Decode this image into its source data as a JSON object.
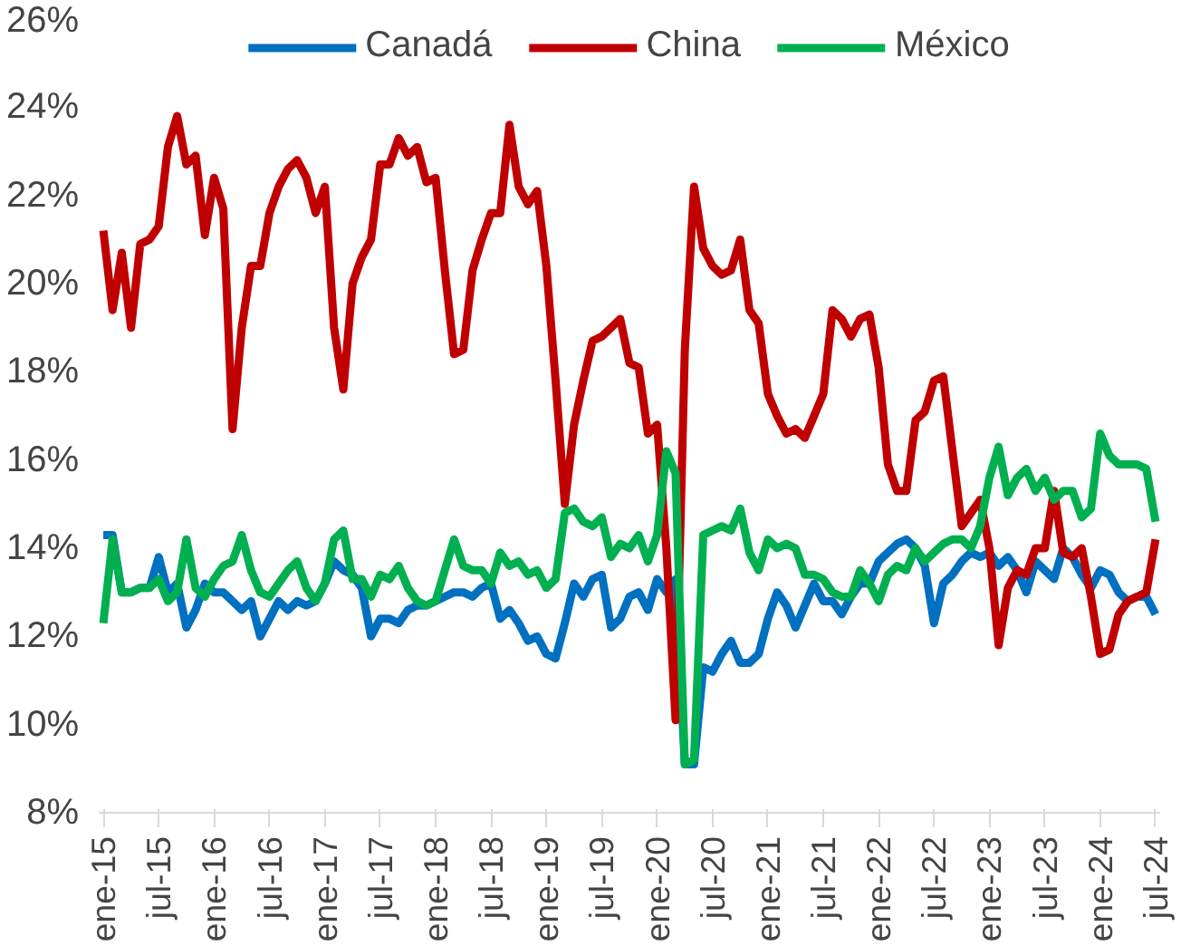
{
  "chart_data": {
    "type": "line",
    "categories": [
      "ene-15",
      null,
      null,
      null,
      null,
      null,
      "jul-15",
      null,
      null,
      null,
      null,
      null,
      "ene-16",
      null,
      null,
      null,
      null,
      null,
      "jul-16",
      null,
      null,
      null,
      null,
      null,
      "ene-17",
      null,
      null,
      null,
      null,
      null,
      "jul-17",
      null,
      null,
      null,
      null,
      null,
      "ene-18",
      null,
      null,
      null,
      null,
      null,
      "jul-18",
      null,
      null,
      null,
      null,
      null,
      "ene-19",
      null,
      null,
      null,
      null,
      null,
      "jul-19",
      null,
      null,
      null,
      null,
      null,
      "ene-20",
      null,
      null,
      null,
      null,
      null,
      "jul-20",
      null,
      null,
      null,
      null,
      null,
      "ene-21",
      null,
      null,
      null,
      null,
      null,
      "jul-21",
      null,
      null,
      null,
      null,
      null,
      "ene-22",
      null,
      null,
      null,
      null,
      null,
      "jul-22",
      null,
      null,
      null,
      null,
      null,
      "ene-23",
      null,
      null,
      null,
      null,
      null,
      "jul-23",
      null,
      null,
      null,
      null,
      null,
      "ene-24",
      null,
      null,
      null,
      null,
      null,
      "jul-24"
    ],
    "series": [
      {
        "name": "Canadá",
        "color": "#0070c0",
        "values": [
          14.3,
          14.3,
          13.0,
          13.0,
          13.1,
          13.1,
          13.8,
          13.0,
          13.2,
          12.2,
          12.6,
          13.2,
          13.0,
          13.0,
          12.8,
          12.6,
          12.8,
          12.0,
          12.4,
          12.8,
          12.6,
          12.8,
          12.7,
          12.8,
          13.2,
          13.7,
          13.5,
          13.4,
          13.1,
          12.0,
          12.4,
          12.4,
          12.3,
          12.6,
          12.7,
          12.7,
          12.8,
          12.9,
          13.0,
          13.0,
          12.9,
          13.1,
          13.2,
          12.4,
          12.6,
          12.3,
          11.9,
          12.0,
          11.6,
          11.5,
          12.3,
          13.2,
          12.9,
          13.3,
          13.4,
          12.2,
          12.4,
          12.9,
          13.0,
          12.6,
          13.3,
          13.0,
          13.3,
          9.1,
          9.1,
          11.3,
          11.2,
          11.6,
          11.9,
          11.4,
          11.4,
          11.6,
          12.4,
          13.0,
          12.7,
          12.2,
          12.7,
          13.2,
          12.8,
          12.8,
          12.5,
          12.9,
          13.2,
          13.2,
          13.7,
          13.9,
          14.1,
          14.2,
          14.0,
          13.6,
          12.3,
          13.2,
          13.4,
          13.7,
          13.9,
          13.8,
          13.9,
          13.6,
          13.8,
          13.5,
          13.0,
          13.7,
          13.5,
          13.3,
          14.0,
          13.8,
          13.4,
          13.1,
          13.5,
          13.4,
          13.0,
          12.8,
          12.9,
          12.9,
          12.5
        ]
      },
      {
        "name": "China",
        "color": "#c00000",
        "values": [
          21.2,
          19.4,
          20.7,
          19.0,
          20.9,
          21.0,
          21.3,
          23.1,
          23.8,
          22.7,
          22.9,
          21.1,
          22.4,
          21.7,
          16.7,
          19.0,
          20.4,
          20.4,
          21.6,
          22.2,
          22.6,
          22.8,
          22.4,
          21.6,
          22.2,
          19.0,
          17.6,
          20.0,
          20.6,
          21.0,
          22.7,
          22.7,
          23.3,
          22.9,
          23.1,
          22.3,
          22.4,
          20.3,
          18.4,
          18.5,
          20.3,
          21.0,
          21.6,
          21.6,
          23.6,
          22.2,
          21.8,
          22.1,
          20.4,
          17.8,
          15.0,
          16.8,
          17.8,
          18.7,
          18.8,
          19.0,
          19.2,
          18.2,
          18.1,
          16.6,
          16.8,
          14.0,
          10.1,
          18.5,
          22.2,
          20.8,
          20.4,
          20.2,
          20.3,
          21.0,
          19.4,
          19.1,
          17.5,
          17.0,
          16.6,
          16.7,
          16.5,
          17.0,
          17.5,
          19.4,
          19.2,
          18.8,
          19.2,
          19.3,
          18.1,
          15.9,
          15.3,
          15.3,
          16.9,
          17.1,
          17.8,
          17.9,
          16.2,
          14.5,
          14.8,
          15.1,
          14.0,
          11.8,
          13.1,
          13.5,
          13.4,
          14.0,
          14.0,
          15.3,
          13.9,
          13.8,
          14.0,
          12.9,
          11.6,
          11.7,
          12.5,
          12.8,
          12.9,
          13.0,
          14.2
        ]
      },
      {
        "name": "México",
        "color": "#00b050",
        "values": [
          12.3,
          14.2,
          13.0,
          13.0,
          13.1,
          13.1,
          13.3,
          12.8,
          13.0,
          14.2,
          13.1,
          12.9,
          13.3,
          13.6,
          13.7,
          14.3,
          13.5,
          13.0,
          12.9,
          13.2,
          13.5,
          13.7,
          13.1,
          12.8,
          13.2,
          14.2,
          14.4,
          13.3,
          13.3,
          12.9,
          13.4,
          13.3,
          13.6,
          13.1,
          12.8,
          12.7,
          12.8,
          13.5,
          14.2,
          13.6,
          13.5,
          13.5,
          13.2,
          13.9,
          13.6,
          13.7,
          13.4,
          13.5,
          13.1,
          13.3,
          14.8,
          14.9,
          14.6,
          14.5,
          14.7,
          13.8,
          14.1,
          14.0,
          14.3,
          13.7,
          14.3,
          16.2,
          15.7,
          9.1,
          9.2,
          14.3,
          14.4,
          14.5,
          14.4,
          14.9,
          13.9,
          13.5,
          14.2,
          14.0,
          14.1,
          14.0,
          13.4,
          13.4,
          13.3,
          13.0,
          12.9,
          12.9,
          13.5,
          13.2,
          12.8,
          13.4,
          13.6,
          13.5,
          14.0,
          13.7,
          13.9,
          14.1,
          14.2,
          14.2,
          14.0,
          14.5,
          15.6,
          16.3,
          15.2,
          15.6,
          15.8,
          15.3,
          15.6,
          15.1,
          15.3,
          15.3,
          14.7,
          14.9,
          16.6,
          16.1,
          15.9,
          15.9,
          15.9,
          15.8,
          14.6
        ]
      }
    ],
    "ylim": [
      8,
      26
    ],
    "yticks": [
      {
        "value": 8,
        "label": "8%"
      },
      {
        "value": 10,
        "label": "10%"
      },
      {
        "value": 12,
        "label": "12%"
      },
      {
        "value": 14,
        "label": "14%"
      },
      {
        "value": 16,
        "label": "16%"
      },
      {
        "value": 18,
        "label": "18%"
      },
      {
        "value": 20,
        "label": "20%"
      },
      {
        "value": 22,
        "label": "22%"
      },
      {
        "value": 24,
        "label": "24%"
      },
      {
        "value": 26,
        "label": "26%"
      }
    ],
    "legend": "top",
    "grid": false,
    "line_style": "solid",
    "marker": "none"
  }
}
